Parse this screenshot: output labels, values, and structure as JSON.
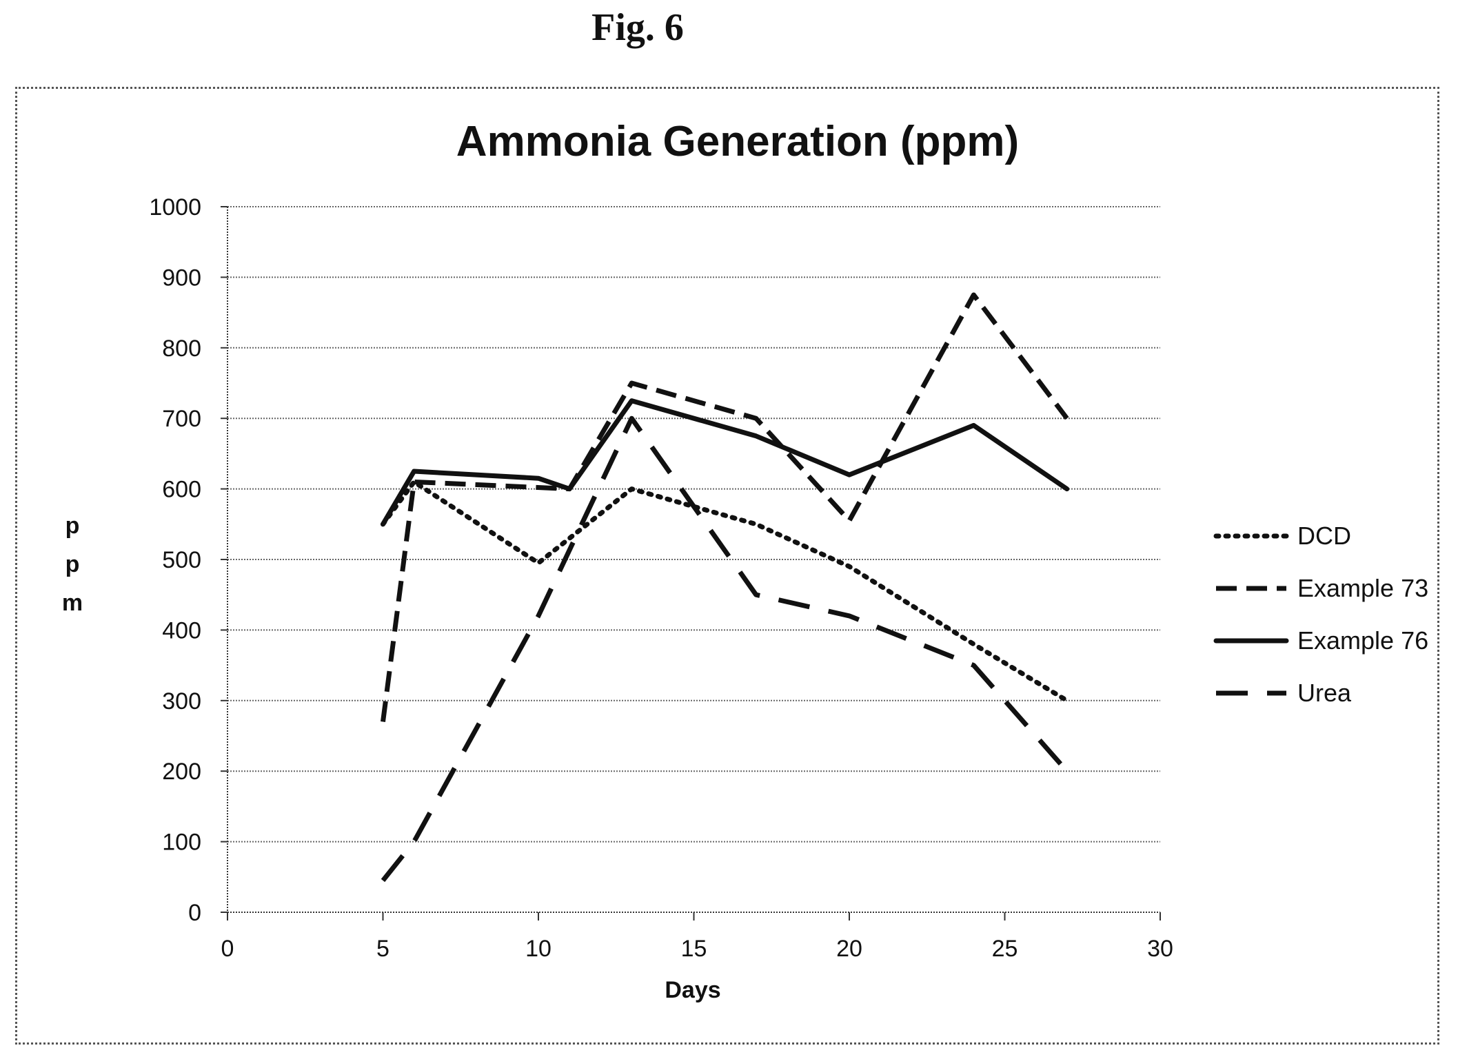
{
  "figure": {
    "label": "Fig. 6"
  },
  "chart_data": {
    "type": "line",
    "title": "Ammonia Generation (ppm)",
    "xlabel": "Days",
    "ylabel": "ppm",
    "xlim": [
      0,
      30
    ],
    "ylim": [
      0,
      1000
    ],
    "xticks": [
      0,
      5,
      10,
      15,
      20,
      25,
      30
    ],
    "yticks": [
      0,
      100,
      200,
      300,
      400,
      500,
      600,
      700,
      800,
      900,
      1000
    ],
    "grid": "horizontal",
    "legend_position": "right",
    "series": [
      {
        "name": "DCD",
        "style": "dotted",
        "x": [
          5,
          6,
          10,
          13,
          17,
          20,
          24,
          27
        ],
        "y": [
          550,
          610,
          495,
          600,
          550,
          490,
          380,
          300
        ]
      },
      {
        "name": "Example 73",
        "style": "dashed",
        "x": [
          5,
          6,
          11,
          13,
          17,
          20,
          24,
          27
        ],
        "y": [
          270,
          610,
          600,
          750,
          700,
          555,
          875,
          700
        ]
      },
      {
        "name": "Example 76",
        "style": "solid",
        "x": [
          5,
          6,
          10,
          11,
          13,
          17,
          20,
          24,
          27
        ],
        "y": [
          550,
          625,
          615,
          600,
          725,
          675,
          620,
          690,
          600
        ]
      },
      {
        "name": "Urea",
        "style": "long-dashed",
        "x": [
          5,
          6,
          10,
          13,
          17,
          20,
          24,
          27
        ],
        "y": [
          45,
          100,
          420,
          700,
          450,
          420,
          350,
          200
        ]
      }
    ]
  },
  "colors": {
    "line": "#111111",
    "grid": "#666666",
    "axis": "#333333"
  }
}
